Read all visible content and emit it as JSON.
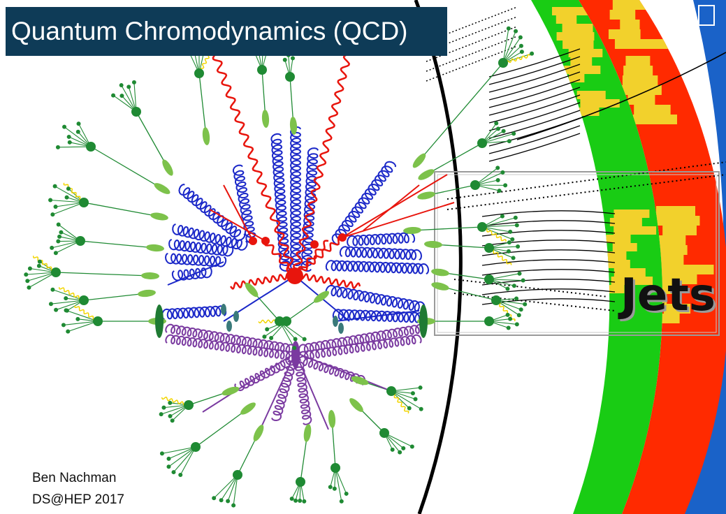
{
  "slide": {
    "title": "Quantum Chromodynamics (QCD)",
    "jets_label": "Jets",
    "author": "Ben Nachman",
    "event": "DS@HEP 2017"
  },
  "colors": {
    "title_bg": "#0e3b57",
    "quark": "#e8150d",
    "gluon": "#1a27c8",
    "purple": "#7a3aa0",
    "hadron": "#1f8a33",
    "cluster": "#7dc24b",
    "photon": "#f2d500",
    "ecal": "#19cc14",
    "hcal": "#ff2a00",
    "deposit": "#f2d12c",
    "muon": "#1a62c8"
  }
}
